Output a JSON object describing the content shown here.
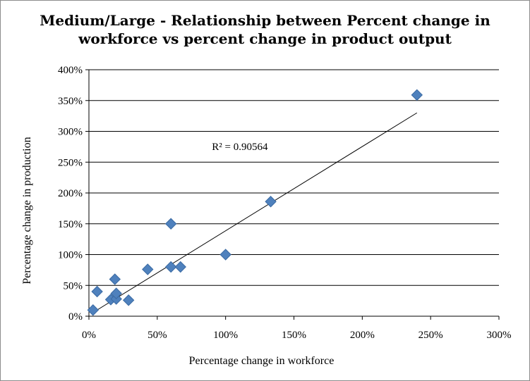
{
  "chart_data": {
    "type": "scatter",
    "title_lines": [
      "Medium/Large - Relationship between Percent change in",
      "workforce vs percent change in product output"
    ],
    "xlabel": "Percentage change in workforce",
    "ylabel": "Percentage change in production",
    "xlim": [
      0,
      3
    ],
    "ylim": [
      0,
      4
    ],
    "x_ticks": [
      "0%",
      "50%",
      "100%",
      "150%",
      "200%",
      "250%",
      "300%"
    ],
    "y_ticks": [
      "0%",
      "50%",
      "100%",
      "150%",
      "200%",
      "250%",
      "300%",
      "350%",
      "400%"
    ],
    "grid": "horizontal",
    "legend": "none",
    "marker": "diamond",
    "marker_color": "#4f81bd",
    "series": [
      {
        "points": [
          [
            0.03,
            0.1
          ],
          [
            0.06,
            0.4
          ],
          [
            0.16,
            0.27
          ],
          [
            0.19,
            0.6
          ],
          [
            0.2,
            0.28
          ],
          [
            0.2,
            0.37
          ],
          [
            0.29,
            0.26
          ],
          [
            0.43,
            0.76
          ],
          [
            0.6,
            1.5
          ],
          [
            0.6,
            0.8
          ],
          [
            0.67,
            0.8
          ],
          [
            1.0,
            1.0
          ],
          [
            1.33,
            1.86
          ],
          [
            2.4,
            3.59
          ]
        ]
      }
    ],
    "trendline": {
      "type": "linear",
      "start": [
        0.03,
        0.06
      ],
      "end": [
        2.4,
        3.3
      ],
      "label": "R² = 0.90564",
      "label_at": [
        0.9,
        2.7
      ]
    }
  }
}
